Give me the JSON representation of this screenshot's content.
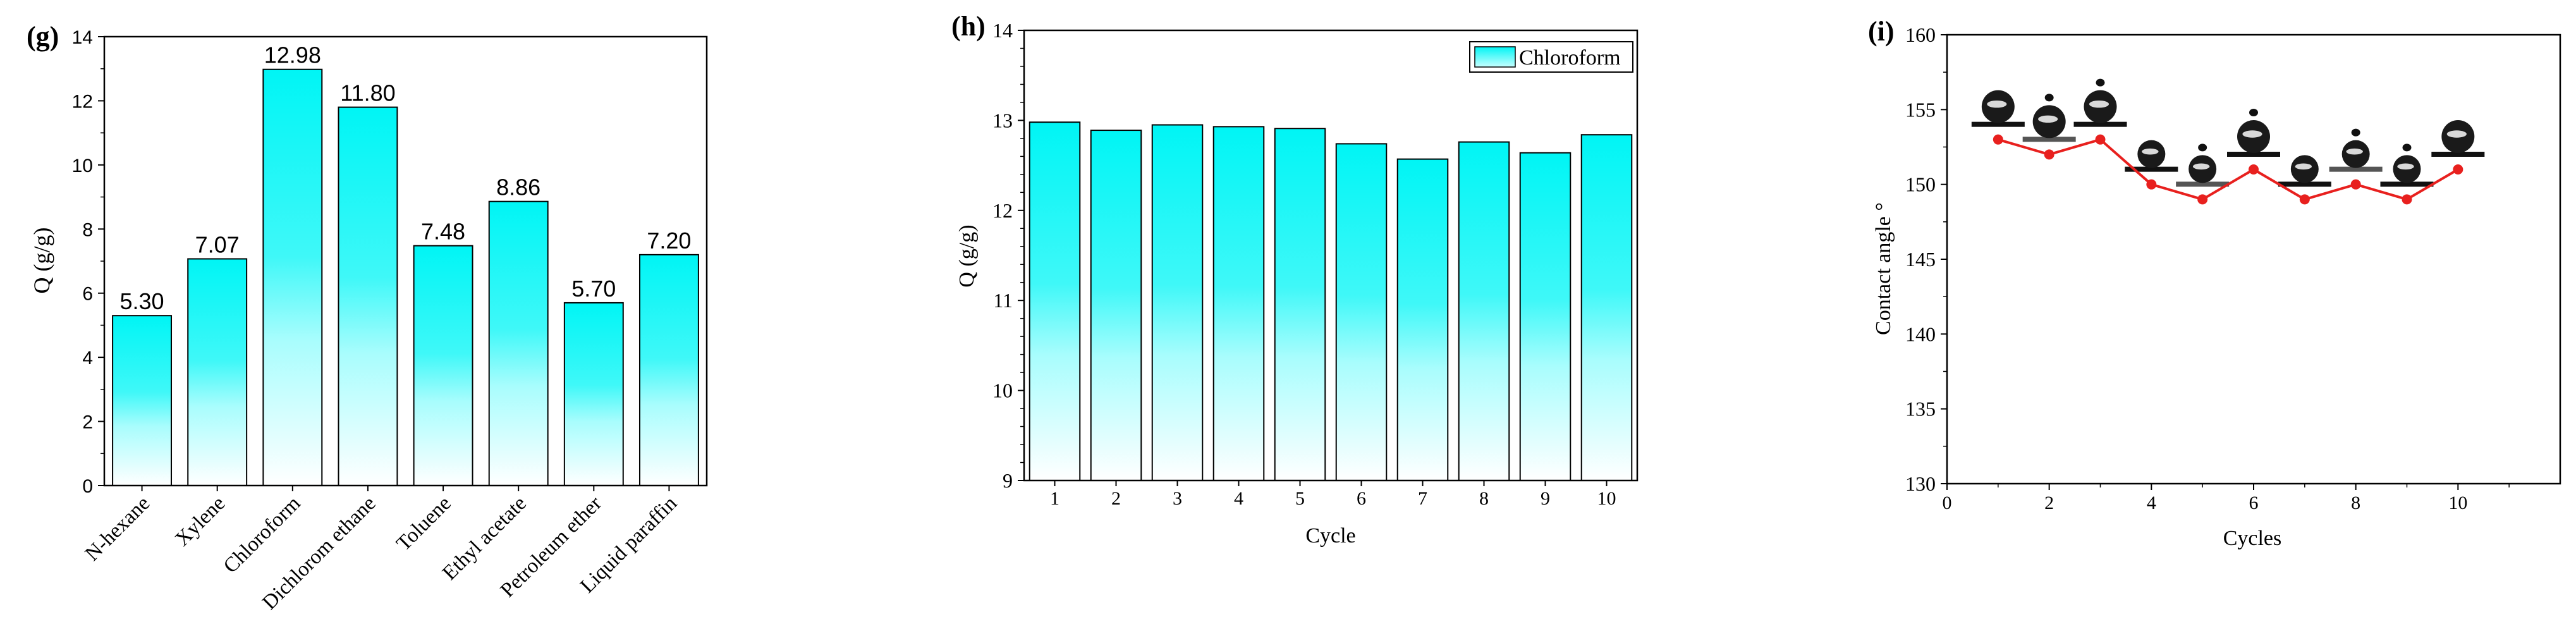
{
  "panels": {
    "g": {
      "label": "(g)"
    },
    "h": {
      "label": "(h)"
    },
    "i": {
      "label": "(i)"
    }
  },
  "colors": {
    "bar_top": "#00f5f5",
    "bar_mid": "#7ffcfc",
    "bar_bottom": "#ffffff",
    "line": "#e8201e",
    "droplet": "#1a1a1a",
    "axis": "#000000"
  },
  "chart_data": [
    {
      "type": "bar",
      "panel": "(g)",
      "categories": [
        "N-hexane",
        "Xylene",
        "Chloroform",
        "Dichlorom ethane",
        "Toluene",
        "Ethyl acetate",
        "Petroleum ether",
        "Liquid paraffin"
      ],
      "values": [
        5.3,
        7.07,
        12.98,
        11.8,
        7.48,
        8.86,
        5.7,
        7.2
      ],
      "value_labels": [
        "5.30",
        "7.07",
        "12.98",
        "11.80",
        "7.48",
        "8.86",
        "5.70",
        "7.20"
      ],
      "title": "",
      "xlabel": "",
      "ylabel": "Q (g/g)",
      "ylim": [
        0,
        14
      ],
      "yticks": [
        "0",
        "2",
        "4",
        "6",
        "8",
        "10",
        "12",
        "14"
      ],
      "grid": false
    },
    {
      "type": "bar",
      "panel": "(h)",
      "categories": [
        "1",
        "2",
        "3",
        "4",
        "5",
        "6",
        "7",
        "8",
        "9",
        "10"
      ],
      "series": [
        {
          "name": "Chloroform",
          "values": [
            12.98,
            12.89,
            12.95,
            12.93,
            12.91,
            12.74,
            12.57,
            12.76,
            12.64,
            12.84
          ]
        }
      ],
      "title": "",
      "xlabel": "Cycle",
      "ylabel": "Q (g/g)",
      "ylim": [
        9,
        14
      ],
      "yticks": [
        "9",
        "10",
        "11",
        "12",
        "13",
        "14"
      ],
      "legend": "top-right",
      "grid": false
    },
    {
      "type": "line",
      "panel": "(i)",
      "x": [
        1,
        2,
        3,
        4,
        5,
        6,
        7,
        8,
        9,
        10
      ],
      "series": [
        {
          "values": [
            153,
            152,
            153,
            150,
            149,
            151,
            149,
            150,
            149,
            151
          ]
        }
      ],
      "title": "",
      "xlabel": "Cycles",
      "ylabel": "Contact angle °",
      "xlim": [
        0,
        12
      ],
      "ylim": [
        130,
        160
      ],
      "xticks": [
        "0",
        "2",
        "4",
        "6",
        "8",
        "10"
      ],
      "yticks": [
        "130",
        "135",
        "140",
        "145",
        "150",
        "155",
        "160"
      ],
      "annotations": "droplet images above each point",
      "grid": false
    }
  ]
}
